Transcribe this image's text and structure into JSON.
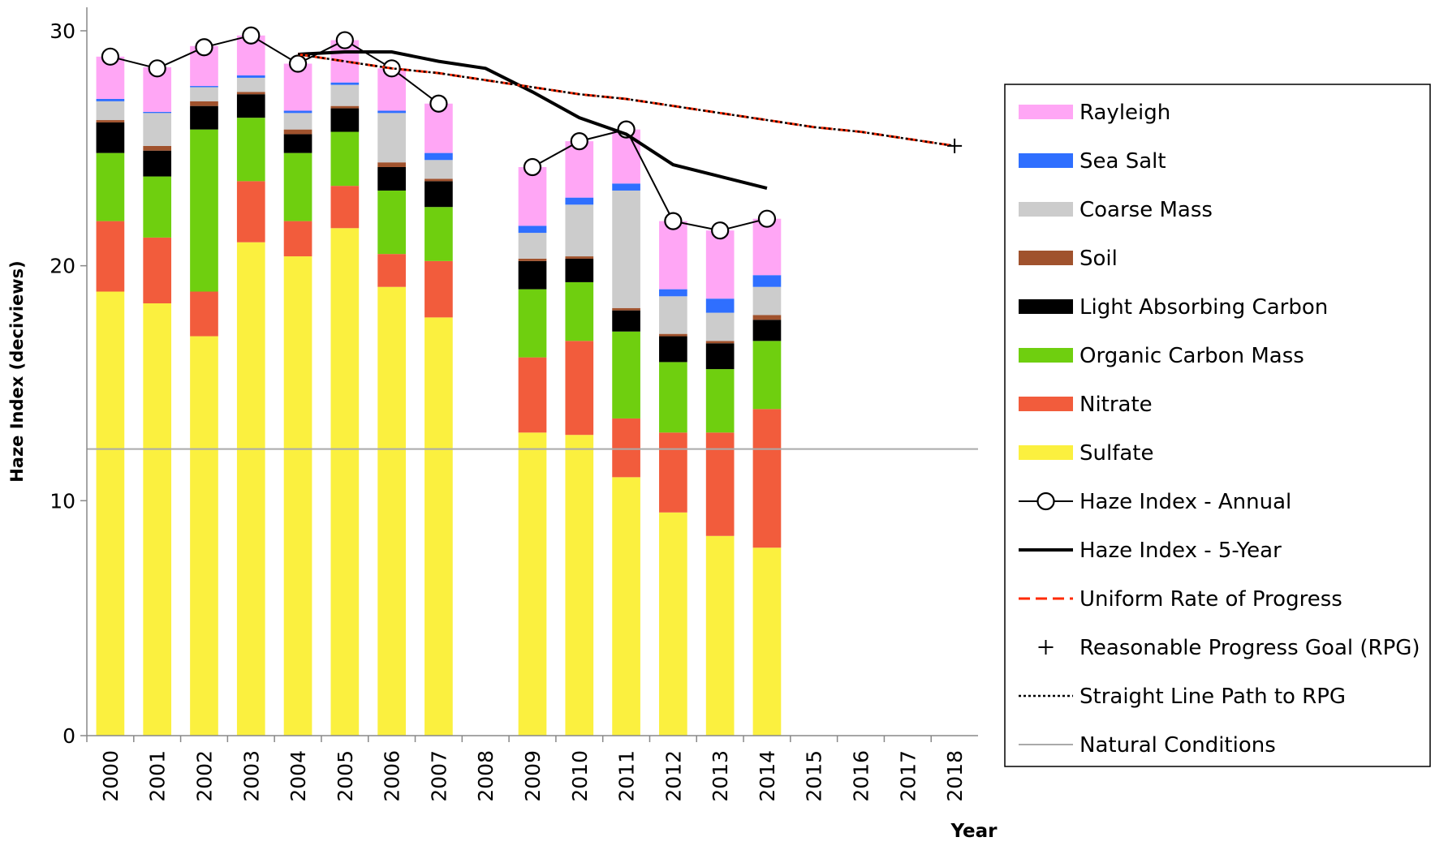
{
  "chart_data": {
    "type": "bar",
    "stacked": true,
    "x_label": "Year",
    "y_label": "Haze Index (deciviews)",
    "categories": [
      "2000",
      "2001",
      "2002",
      "2003",
      "2004",
      "2005",
      "2006",
      "2007",
      "2008",
      "2009",
      "2010",
      "2011",
      "2012",
      "2013",
      "2014",
      "2015",
      "2016",
      "2017",
      "2018"
    ],
    "ylim": [
      0,
      31
    ],
    "yticks": [
      0,
      10,
      20,
      30
    ],
    "legend": "right",
    "series": [
      {
        "name": "Rayleigh",
        "type": "bar",
        "color": "#ffa6f5",
        "values": [
          1.8,
          1.9,
          1.7,
          1.7,
          2.0,
          1.8,
          1.8,
          2.1,
          null,
          2.5,
          2.4,
          2.3,
          2.9,
          2.9,
          2.4,
          null,
          null,
          null,
          null
        ]
      },
      {
        "name": "Sea Salt",
        "type": "bar",
        "color": "#2f6fff",
        "values": [
          0.1,
          0.05,
          0.05,
          0.1,
          0.1,
          0.1,
          0.1,
          0.3,
          null,
          0.3,
          0.3,
          0.3,
          0.3,
          0.6,
          0.5,
          null,
          null,
          null,
          null
        ]
      },
      {
        "name": "Coarse Mass",
        "type": "bar",
        "color": "#cccccc",
        "values": [
          0.8,
          1.4,
          0.6,
          0.6,
          0.7,
          0.9,
          2.1,
          0.8,
          null,
          1.1,
          2.2,
          5.0,
          1.6,
          1.2,
          1.2,
          null,
          null,
          null,
          null
        ]
      },
      {
        "name": "Soil",
        "type": "bar",
        "color": "#a0522d",
        "values": [
          0.1,
          0.2,
          0.2,
          0.1,
          0.2,
          0.1,
          0.2,
          0.1,
          null,
          0.1,
          0.1,
          0.1,
          0.1,
          0.1,
          0.2,
          null,
          null,
          null,
          null
        ]
      },
      {
        "name": "Light Absorbing Carbon",
        "type": "bar",
        "color": "#000000",
        "values": [
          1.3,
          1.1,
          1.0,
          1.0,
          0.8,
          1.0,
          1.0,
          1.1,
          null,
          1.2,
          1.0,
          0.9,
          1.1,
          1.1,
          0.9,
          null,
          null,
          null,
          null
        ]
      },
      {
        "name": "Organic Carbon Mass",
        "type": "bar",
        "color": "#6fcf0f",
        "values": [
          2.9,
          2.6,
          6.9,
          2.7,
          2.9,
          2.3,
          2.7,
          2.3,
          null,
          2.9,
          2.5,
          3.7,
          3.0,
          2.7,
          2.9,
          null,
          null,
          null,
          null
        ]
      },
      {
        "name": "Nitrate",
        "type": "bar",
        "color": "#f25c3c",
        "values": [
          3.0,
          2.8,
          1.9,
          2.6,
          1.5,
          1.8,
          1.4,
          2.4,
          null,
          3.2,
          4.0,
          2.5,
          3.4,
          4.4,
          5.9,
          null,
          null,
          null,
          null
        ]
      },
      {
        "name": "Sulfate",
        "type": "bar",
        "color": "#fbf03f",
        "values": [
          18.9,
          18.4,
          17.0,
          21.0,
          20.4,
          21.6,
          19.1,
          17.8,
          null,
          12.9,
          12.8,
          11.0,
          9.5,
          8.5,
          8.0,
          null,
          null,
          null,
          null
        ]
      },
      {
        "name": "Haze Index - Annual",
        "type": "line",
        "color": "#000000",
        "marker": "circle",
        "line_style": "solid",
        "width": 2,
        "values": [
          28.9,
          28.4,
          29.3,
          29.8,
          28.6,
          29.6,
          28.4,
          26.9,
          null,
          24.2,
          25.3,
          25.8,
          21.9,
          21.5,
          22.0,
          null,
          null,
          null,
          null
        ]
      },
      {
        "name": "Haze Index - 5-Year",
        "type": "line",
        "color": "#000000",
        "line_style": "solid",
        "width": 4,
        "values": [
          null,
          null,
          null,
          null,
          29.0,
          29.1,
          29.1,
          28.7,
          28.4,
          27.4,
          26.3,
          25.6,
          24.3,
          23.8,
          23.3,
          null,
          null,
          null,
          null
        ]
      },
      {
        "name": "Uniform Rate of Progress",
        "type": "line",
        "color": "#ff2a00",
        "line_style": "dashed",
        "width": 3,
        "values": [
          null,
          null,
          null,
          null,
          29.0,
          28.7,
          28.4,
          28.2,
          27.9,
          27.6,
          27.3,
          27.1,
          26.8,
          26.5,
          26.2,
          25.9,
          25.7,
          25.4,
          25.1
        ]
      },
      {
        "name": "Reasonable Progress Goal (RPG)",
        "type": "line",
        "color": "#000000",
        "marker": "plus",
        "line_style": "none",
        "width": 2,
        "values": [
          null,
          null,
          null,
          null,
          null,
          null,
          null,
          null,
          null,
          null,
          null,
          null,
          null,
          null,
          null,
          null,
          null,
          null,
          25.1
        ]
      },
      {
        "name": "Straight Line Path to RPG",
        "type": "line",
        "color": "#000000",
        "line_style": "dotted",
        "width": 2.5,
        "values": [
          null,
          null,
          null,
          null,
          29.0,
          28.7,
          28.4,
          28.2,
          27.9,
          27.6,
          27.3,
          27.1,
          26.8,
          26.5,
          26.2,
          25.9,
          25.7,
          25.4,
          25.1
        ]
      },
      {
        "name": "Natural Conditions",
        "type": "hline",
        "color": "#aaaaaa",
        "width": 2,
        "value": 12.2
      }
    ]
  }
}
